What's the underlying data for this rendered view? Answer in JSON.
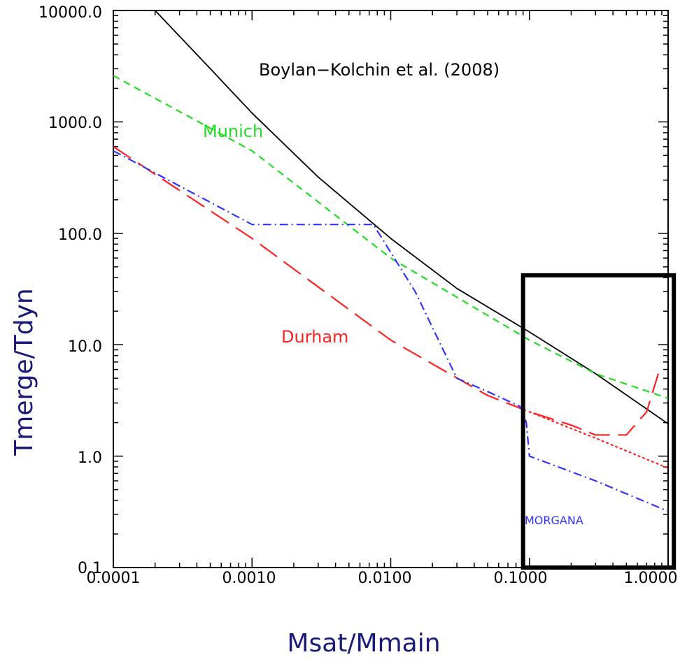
{
  "chart_data": {
    "type": "line",
    "xscale": "log",
    "yscale": "log",
    "xlim": [
      0.0001,
      1.0
    ],
    "ylim": [
      0.1,
      10000.0
    ],
    "xlabel": "Msat/Mmain",
    "ylabel": "Tmerge/Tdyn",
    "x_ticks": [
      {
        "value": 0.0001,
        "label": "0.0001"
      },
      {
        "value": 0.001,
        "label": "0.0010"
      },
      {
        "value": 0.01,
        "label": "0.0100"
      },
      {
        "value": 0.1,
        "label": "0.1000"
      },
      {
        "value": 1.0,
        "label": "1.0000"
      }
    ],
    "y_ticks": [
      {
        "value": 0.1,
        "label": "0.1"
      },
      {
        "value": 1.0,
        "label": "1.0"
      },
      {
        "value": 10.0,
        "label": "10.0"
      },
      {
        "value": 100.0,
        "label": "100.0"
      },
      {
        "value": 1000.0,
        "label": "1000.0"
      },
      {
        "value": 10000.0,
        "label": "10000.0"
      }
    ],
    "series": [
      {
        "color": "#000000",
        "style": "solid",
        "x": [
          0.0002,
          0.0005,
          0.001,
          0.003,
          0.01,
          0.03,
          0.1,
          0.3,
          1.0
        ],
        "y": [
          10000,
          3000,
          1200,
          320,
          90,
          32,
          13,
          5.5,
          1.95
        ]
      },
      {
        "color": "#22dd22",
        "style": "dashed",
        "x": [
          0.0001,
          0.001,
          0.01,
          0.1,
          0.3,
          1.0
        ],
        "y": [
          2600,
          550,
          60,
          11,
          5.5,
          3.3
        ]
      },
      {
        "color": "#ff2222",
        "style": "longdash",
        "x": [
          0.0001,
          0.001,
          0.01,
          0.05,
          0.1,
          0.2,
          0.3,
          0.5,
          0.7,
          0.85
        ],
        "y": [
          600,
          90,
          11,
          3.5,
          2.5,
          1.9,
          1.55,
          1.55,
          2.5,
          5.5
        ]
      },
      {
        "color": "#ff2222",
        "style": "dotted",
        "x": [
          0.1,
          0.3,
          1.0
        ],
        "y": [
          2.5,
          1.45,
          0.78
        ]
      },
      {
        "color": "#3333ff",
        "style": "dashdot",
        "x": [
          0.0001,
          0.001,
          0.0075,
          0.015,
          0.03,
          0.05,
          0.085,
          0.09,
          0.095,
          0.1,
          0.3,
          1.0
        ],
        "y": [
          550,
          120,
          120,
          30,
          5.0,
          3.8,
          2.8,
          2.5,
          2.0,
          1.0,
          0.6,
          0.32
        ]
      }
    ],
    "annotations": [
      {
        "text": "Boylan−Kolchin et al. (2008)",
        "color": "#000000"
      },
      {
        "text": "Munich",
        "color": "#22dd22"
      },
      {
        "text": "Durham",
        "color": "#ff2222"
      },
      {
        "text": "MORGANA",
        "color": "#3333ff"
      }
    ],
    "highlight_box": {
      "x_range": [
        0.09,
        1.1
      ],
      "y_range": [
        0.1,
        42
      ],
      "color": "#000000"
    }
  }
}
